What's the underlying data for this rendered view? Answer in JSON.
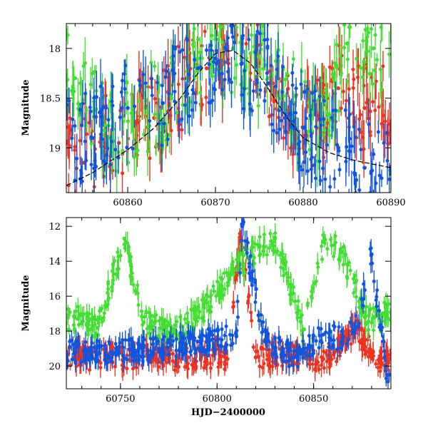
{
  "colors": {
    "red": "#ee3322",
    "green": "#44dd33",
    "blue": "#1155dd",
    "model": "#000000"
  },
  "chart_data": [
    {
      "id": "top",
      "type": "scatter",
      "title": "",
      "xlabel": "",
      "ylabel": "Magnitude",
      "xlim": [
        60853,
        60890
      ],
      "ylim": [
        19.45,
        17.75
      ],
      "y_inverted": true,
      "x_ticks": [
        60860,
        60870,
        60880,
        60890
      ],
      "y_ticks": [
        18,
        18.5,
        19
      ],
      "grid": false,
      "legend": "none",
      "model_curve": {
        "color": "#000000",
        "x": [
          60853,
          60856,
          60860,
          60863,
          60866,
          60868,
          60870,
          60872,
          60874,
          60876,
          60878,
          60880,
          60883,
          60886,
          60890
        ],
        "y": [
          19.38,
          19.25,
          19.02,
          18.8,
          18.5,
          18.25,
          18.05,
          18.02,
          18.15,
          18.4,
          18.68,
          18.9,
          19.05,
          19.13,
          19.2
        ]
      },
      "series": [
        {
          "name": "",
          "color": "#ee3322",
          "x": [
            60855,
            60857,
            60859,
            60861,
            60863,
            60867,
            60869,
            60871,
            60873,
            60875,
            60877,
            60879,
            60881,
            60884,
            60887
          ],
          "y": [
            19.15,
            18.9,
            18.95,
            18.75,
            18.7,
            18.3,
            18.2,
            18.0,
            17.95,
            18.15,
            18.45,
            18.7,
            18.85,
            18.4,
            18.6
          ]
        },
        {
          "name": "",
          "color": "#44dd33",
          "x": [
            60854,
            60858,
            60862,
            60865,
            60868,
            60872,
            60874,
            60876,
            60879,
            60882,
            60885,
            60888
          ],
          "y": [
            18.3,
            18.9,
            18.6,
            18.5,
            18.1,
            18.0,
            18.05,
            18.3,
            18.55,
            18.75,
            17.95,
            18.0
          ]
        },
        {
          "name": "",
          "color": "#1155dd",
          "x": [
            60856,
            60860,
            60864,
            60868,
            60870,
            60873,
            60876,
            60880,
            60884,
            60887
          ],
          "y": [
            18.9,
            18.6,
            18.55,
            18.2,
            18.1,
            18.15,
            18.35,
            18.8,
            19.0,
            19.2
          ]
        }
      ]
    },
    {
      "id": "bottom",
      "type": "scatter",
      "title": "",
      "xlabel": "HJD−2400000",
      "ylabel": "Magnitude",
      "xlim": [
        60722,
        60890
      ],
      "ylim": [
        21.3,
        11.5
      ],
      "y_inverted": true,
      "x_ticks": [
        60750,
        60800,
        60850
      ],
      "y_ticks": [
        12,
        14,
        16,
        18,
        20
      ],
      "grid": false,
      "legend": "none",
      "series": [
        {
          "name": "",
          "color": "#ee3322",
          "x": [
            60726,
            60735,
            60745,
            60755,
            60765,
            60775,
            60785,
            60795,
            60805,
            60812,
            60820,
            60830,
            60840,
            60848,
            60855,
            60862,
            60868,
            60871,
            60875,
            60880,
            60885
          ],
          "y": [
            19.5,
            19.6,
            19.4,
            19.7,
            19.5,
            19.6,
            19.5,
            19.4,
            19.6,
            12.8,
            19.5,
            19.3,
            19.4,
            19.5,
            19.6,
            19.1,
            18.3,
            17.9,
            18.5,
            19.2,
            19.8
          ]
        },
        {
          "name": "",
          "color": "#44dd33",
          "x": [
            60728,
            60738,
            60752,
            60762,
            60778,
            60790,
            60810,
            60818,
            60830,
            60845,
            60855,
            60864,
            60878,
            60886
          ],
          "y": [
            17.3,
            17.8,
            12.7,
            17.5,
            18.0,
            17.2,
            14.5,
            13.6,
            12.7,
            17.9,
            12.9,
            13.3,
            17.5,
            17.0
          ]
        },
        {
          "name": "",
          "color": "#1155dd",
          "x": [
            60745,
            60770,
            60790,
            60810,
            60813,
            60825,
            60840,
            60855,
            60865,
            60872,
            60880,
            60888
          ],
          "y": [
            19.2,
            19.0,
            18.6,
            18.3,
            12.0,
            18.6,
            19.5,
            18.2,
            18.4,
            17.8,
            13.6,
            20.5
          ]
        }
      ]
    }
  ]
}
